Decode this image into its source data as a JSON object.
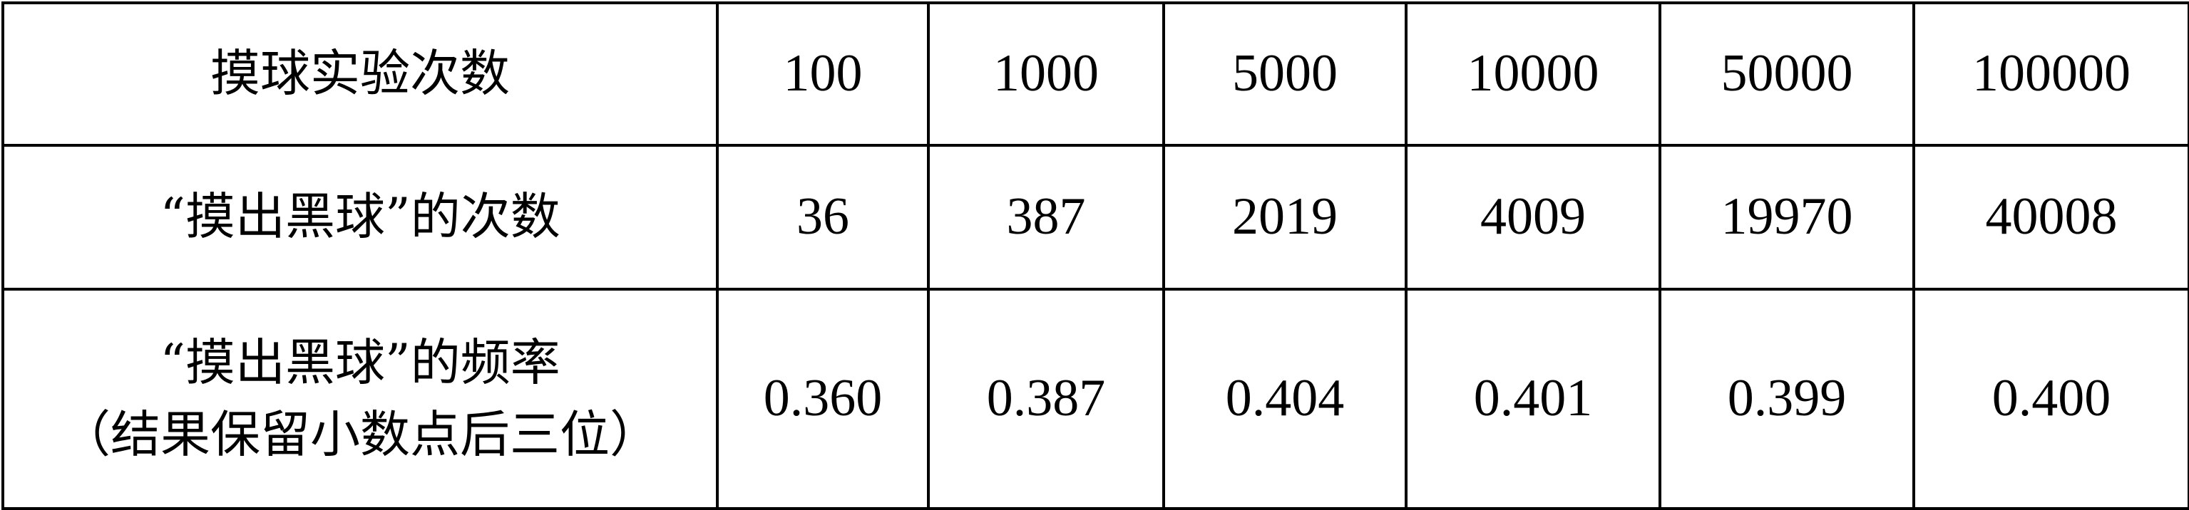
{
  "table": {
    "rows": [
      {
        "header_lines": [
          "摸球实验次数"
        ],
        "values": [
          "100",
          "1000",
          "5000",
          "10000",
          "50000",
          "100000"
        ]
      },
      {
        "header_lines": [
          "“摸出黑球”的次数"
        ],
        "values": [
          "36",
          "387",
          "2019",
          "4009",
          "19970",
          "40008"
        ]
      },
      {
        "header_lines": [
          "“摸出黑球”的频率",
          "（结果保留小数点后三位）"
        ],
        "values": [
          "0.360",
          "0.387",
          "0.404",
          "0.401",
          "0.399",
          "0.400"
        ]
      }
    ]
  }
}
